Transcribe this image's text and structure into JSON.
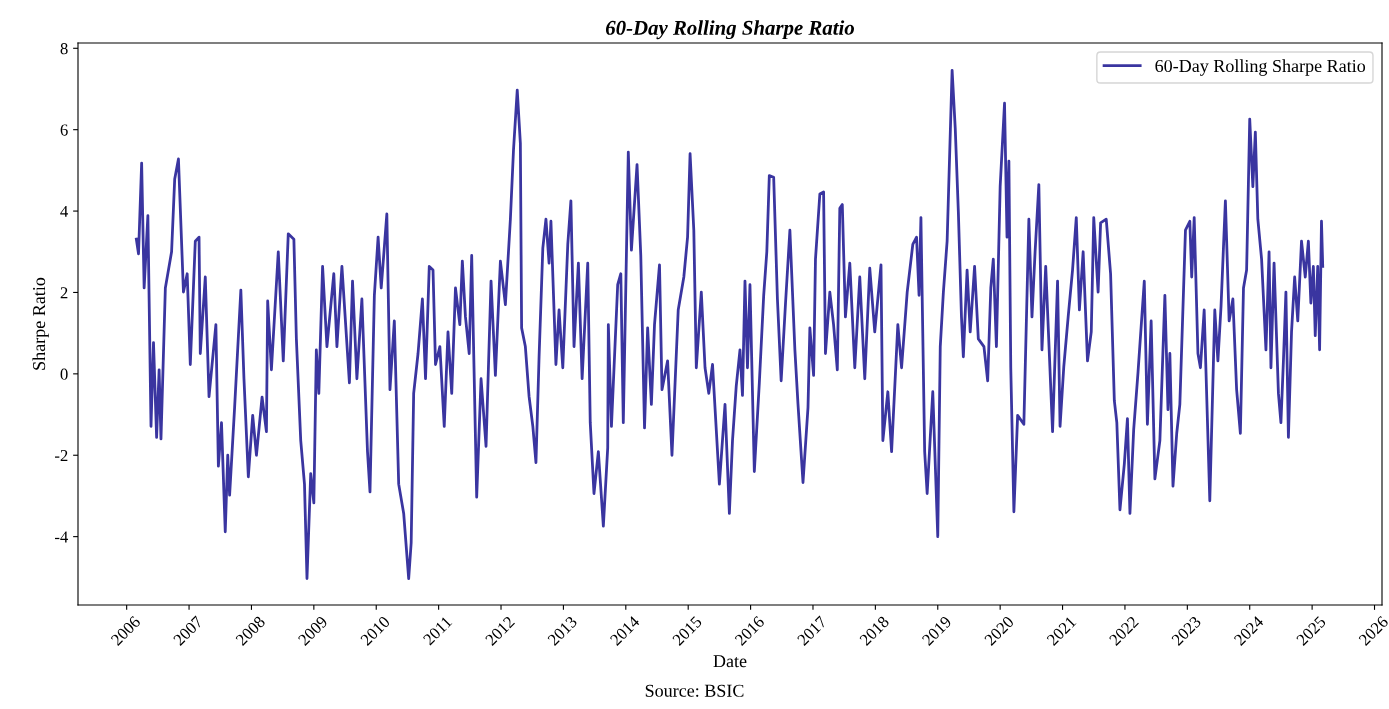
{
  "chart_data": {
    "type": "line",
    "title": "60-Day Rolling Sharpe Ratio",
    "xlabel": "Date",
    "ylabel": "Sharpe Ratio",
    "annotations": [
      "Source: BSIC"
    ],
    "xlim": [
      2005.22,
      2026.12
    ],
    "xticks": [
      2006,
      2007,
      2008,
      2009,
      2010,
      2011,
      2012,
      2013,
      2014,
      2015,
      2016,
      2017,
      2018,
      2019,
      2020,
      2021,
      2022,
      2023,
      2024,
      2025,
      2026
    ],
    "ylim": [
      -5.68,
      8.13
    ],
    "yticks": [
      -4,
      -2,
      0,
      2,
      4,
      6,
      8
    ],
    "grid": false,
    "legend": "top right",
    "marker": "none",
    "line_style": "solid",
    "series": [
      {
        "name": "60-Day Rolling Sharpe Ratio",
        "color": "#3a35a0",
        "x": [
          2006.155,
          2006.19,
          2006.24,
          2006.28,
          2006.34,
          2006.39,
          2006.43,
          2006.48,
          2006.52,
          2006.55,
          2006.62,
          2006.72,
          2006.77,
          2006.83,
          2006.91,
          2006.97,
          2007.02,
          2007.1,
          2007.16,
          2007.18,
          2007.26,
          2007.32,
          2007.43,
          2007.47,
          2007.52,
          2007.58,
          2007.62,
          2007.65,
          2007.73,
          2007.83,
          2007.88,
          2007.95,
          2008.02,
          2008.08,
          2008.17,
          2008.24,
          2008.26,
          2008.32,
          2008.43,
          2008.51,
          2008.59,
          2008.68,
          2008.72,
          2008.79,
          2008.85,
          2008.89,
          2008.95,
          2009.0,
          2009.04,
          2009.08,
          2009.14,
          2009.21,
          2009.32,
          2009.37,
          2009.45,
          2009.57,
          2009.62,
          2009.69,
          2009.77,
          2009.86,
          2009.9,
          2009.97,
          2010.03,
          2010.08,
          2010.17,
          2010.22,
          2010.29,
          2010.36,
          2010.44,
          2010.52,
          2010.56,
          2010.6,
          2010.67,
          2010.74,
          2010.79,
          2010.85,
          2010.91,
          2010.95,
          2011.02,
          2011.09,
          2011.15,
          2011.21,
          2011.27,
          2011.34,
          2011.38,
          2011.43,
          2011.49,
          2011.53,
          2011.61,
          2011.68,
          2011.76,
          2011.84,
          2011.91,
          2011.99,
          2012.07,
          2012.15,
          2012.2,
          2012.26,
          2012.31,
          2012.33,
          2012.39,
          2012.45,
          2012.51,
          2012.56,
          2012.61,
          2012.67,
          2012.72,
          2012.77,
          2012.8,
          2012.88,
          2012.93,
          2012.99,
          2013.07,
          2013.12,
          2013.17,
          2013.24,
          2013.3,
          2013.39,
          2013.43,
          2013.49,
          2013.56,
          2013.64,
          2013.71,
          2013.72,
          2013.77,
          2013.87,
          2013.92,
          2013.96,
          2014.04,
          2014.09,
          2014.18,
          2014.24,
          2014.3,
          2014.35,
          2014.41,
          2014.46,
          2014.54,
          2014.58,
          2014.67,
          2014.74,
          2014.84,
          2014.93,
          2014.99,
          2015.03,
          2015.09,
          2015.13,
          2015.21,
          2015.27,
          2015.33,
          2015.39,
          2015.5,
          2015.59,
          2015.66,
          2015.71,
          2015.77,
          2015.83,
          2015.87,
          2015.91,
          2015.95,
          2015.99,
          2016.06,
          2016.14,
          2016.21,
          2016.26,
          2016.3,
          2016.37,
          2016.43,
          2016.49,
          2016.56,
          2016.63,
          2016.71,
          2016.76,
          2016.84,
          2016.92,
          2016.95,
          2017.01,
          2017.04,
          2017.11,
          2017.17,
          2017.2,
          2017.27,
          2017.33,
          2017.39,
          2017.43,
          2017.47,
          2017.52,
          2017.59,
          2017.67,
          2017.75,
          2017.83,
          2017.91,
          2017.99,
          2018.09,
          2018.12,
          2018.2,
          2018.26,
          2018.36,
          2018.42,
          2018.51,
          2018.6,
          2018.66,
          2018.7,
          2018.73,
          2018.79,
          2018.83,
          2018.92,
          2019.0,
          2019.04,
          2019.09,
          2019.15,
          2019.23,
          2019.28,
          2019.33,
          2019.38,
          2019.41,
          2019.47,
          2019.52,
          2019.59,
          2019.65,
          2019.74,
          2019.8,
          2019.85,
          2019.89,
          2019.94,
          2020.0,
          2020.07,
          2020.11,
          2020.14,
          2020.17,
          2020.22,
          2020.28,
          2020.38,
          2020.46,
          2020.51,
          2020.56,
          2020.62,
          2020.67,
          2020.73,
          2020.84,
          2020.92,
          2020.96,
          2021.02,
          2021.09,
          2021.16,
          2021.22,
          2021.27,
          2021.33,
          2021.4,
          2021.46,
          2021.5,
          2021.57,
          2021.61,
          2021.7,
          2021.77,
          2021.83,
          2021.87,
          2021.92,
          2021.99,
          2022.04,
          2022.08,
          2022.14,
          2022.21,
          2022.31,
          2022.36,
          2022.42,
          2022.48,
          2022.56,
          2022.64,
          2022.69,
          2022.72,
          2022.77,
          2022.83,
          2022.88,
          2022.97,
          2023.04,
          2023.07,
          2023.11,
          2023.17,
          2023.21,
          2023.27,
          2023.36,
          2023.44,
          2023.49,
          2023.54,
          2023.61,
          2023.67,
          2023.73,
          2023.79,
          2023.85,
          2023.9,
          2023.95,
          2024.0,
          2024.05,
          2024.09,
          2024.13,
          2024.19,
          2024.26,
          2024.31,
          2024.34,
          2024.39,
          2024.46,
          2024.5,
          2024.54,
          2024.58,
          2024.62,
          2024.67,
          2024.72,
          2024.77,
          2024.83,
          2024.89,
          2024.94,
          2024.98,
          2025.02,
          2025.05,
          2025.09,
          2025.12,
          2025.15,
          2025.17
        ],
        "values": [
          3.31,
          2.95,
          5.18,
          2.11,
          3.89,
          -1.29,
          0.77,
          -1.56,
          0.1,
          -1.6,
          2.11,
          3.0,
          4.79,
          5.28,
          2.01,
          2.46,
          0.23,
          3.26,
          3.36,
          0.5,
          2.38,
          -0.56,
          1.21,
          -2.27,
          -1.2,
          -3.88,
          -2.0,
          -2.98,
          -0.83,
          2.06,
          -0.12,
          -2.53,
          -1.02,
          -2.0,
          -0.57,
          -1.42,
          1.79,
          0.1,
          3.0,
          0.32,
          3.44,
          3.31,
          0.86,
          -1.64,
          -2.71,
          -5.03,
          -2.45,
          -3.17,
          0.59,
          -0.48,
          2.64,
          0.67,
          2.46,
          0.67,
          2.64,
          -0.22,
          2.28,
          -0.12,
          1.84,
          -1.91,
          -2.9,
          1.93,
          3.36,
          2.11,
          3.93,
          -0.39,
          1.3,
          -2.71,
          -3.43,
          -5.03,
          -4.15,
          -0.48,
          0.5,
          1.84,
          -0.12,
          2.64,
          2.55,
          0.23,
          0.67,
          -1.29,
          1.03,
          -0.48,
          2.11,
          1.21,
          2.77,
          1.4,
          0.5,
          2.91,
          -3.03,
          -0.12,
          -1.78,
          2.28,
          -0.04,
          2.77,
          1.7,
          3.8,
          5.5,
          6.97,
          5.67,
          1.13,
          0.67,
          -0.56,
          -1.29,
          -2.18,
          0.42,
          3.09,
          3.8,
          2.72,
          3.75,
          0.23,
          1.57,
          0.15,
          3.18,
          4.25,
          0.67,
          2.72,
          -0.12,
          2.72,
          -1.2,
          -2.94,
          -1.91,
          -3.74,
          -1.82,
          1.21,
          -1.29,
          2.19,
          2.46,
          -1.2,
          5.45,
          3.04,
          5.14,
          2.91,
          -1.33,
          1.13,
          -0.75,
          1.21,
          2.68,
          -0.39,
          0.32,
          -2.0,
          1.57,
          2.38,
          3.36,
          5.41,
          3.53,
          0.15,
          2.01,
          0.15,
          -0.48,
          0.23,
          -2.71,
          -0.75,
          -3.43,
          -1.64,
          -0.3,
          0.59,
          -0.53,
          2.28,
          0.15,
          2.19,
          -2.4,
          -0.22,
          1.93,
          3.0,
          4.87,
          4.83,
          1.84,
          -0.17,
          1.74,
          3.53,
          0.59,
          -0.75,
          -2.67,
          -0.83,
          1.13,
          -0.04,
          2.82,
          4.42,
          4.47,
          0.5,
          2.01,
          1.21,
          0.1,
          4.07,
          4.16,
          1.4,
          2.72,
          0.15,
          2.38,
          -0.12,
          2.6,
          1.03,
          2.68,
          -1.64,
          -0.44,
          -1.91,
          1.21,
          0.15,
          2.01,
          3.18,
          3.36,
          1.93,
          3.84,
          -1.91,
          -2.94,
          -0.44,
          -4.0,
          0.67,
          2.01,
          3.26,
          7.46,
          6.04,
          3.98,
          1.4,
          0.42,
          2.55,
          1.03,
          2.64,
          0.86,
          0.67,
          -0.17,
          2.11,
          2.82,
          0.67,
          4.6,
          6.65,
          3.36,
          5.23,
          0.15,
          -3.39,
          -1.02,
          -1.24,
          3.8,
          1.4,
          3.0,
          4.65,
          0.59,
          2.64,
          -1.42,
          2.28,
          -1.29,
          0.18,
          1.4,
          2.55,
          3.84,
          1.57,
          3.0,
          0.32,
          1.03,
          3.84,
          2.01,
          3.71,
          3.8,
          2.46,
          -0.66,
          -1.2,
          -3.34,
          -2.22,
          -1.1,
          -3.43,
          -1.37,
          0.05,
          2.28,
          -1.24,
          1.3,
          -2.58,
          -1.64,
          1.93,
          -0.88,
          0.5,
          -2.76,
          -1.46,
          -0.75,
          3.53,
          3.75,
          2.38,
          3.84,
          0.5,
          0.15,
          1.57,
          -3.12,
          1.57,
          0.32,
          1.66,
          4.25,
          1.3,
          1.84,
          -0.39,
          -1.46,
          2.11,
          2.55,
          6.26,
          4.6,
          5.94,
          3.8,
          2.82,
          0.59,
          3.0,
          0.15,
          2.72,
          -0.48,
          -1.2,
          0.32,
          2.01,
          -1.56,
          1.03,
          2.38,
          1.3,
          3.26,
          2.38,
          3.26,
          1.74,
          2.64,
          0.94,
          2.64,
          0.59,
          3.75,
          2.64
        ]
      }
    ]
  }
}
